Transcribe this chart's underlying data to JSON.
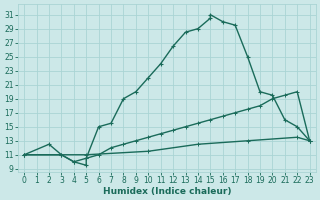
{
  "xlabel": "Humidex (Indice chaleur)",
  "bg_color": "#cce8e8",
  "grid_color": "#aad4d4",
  "line_color": "#1a6b5a",
  "xlim": [
    -0.5,
    23.5
  ],
  "ylim": [
    8.5,
    32.5
  ],
  "xticks": [
    0,
    1,
    2,
    3,
    4,
    5,
    6,
    7,
    8,
    9,
    10,
    11,
    12,
    13,
    14,
    15,
    16,
    17,
    18,
    19,
    20,
    21,
    22,
    23
  ],
  "yticks": [
    9,
    11,
    13,
    15,
    17,
    19,
    21,
    23,
    25,
    27,
    29,
    31
  ],
  "curve1_x": [
    0,
    2,
    3,
    4,
    5,
    5,
    6,
    7,
    8,
    9,
    10,
    11,
    12,
    13,
    14,
    15,
    15,
    16,
    17,
    18,
    19,
    20,
    21,
    22,
    23
  ],
  "curve1_y": [
    11,
    12.5,
    11,
    10,
    9.5,
    10.5,
    15,
    15.5,
    19,
    20,
    22,
    24,
    26.5,
    28.5,
    29,
    30.5,
    31,
    30,
    29.5,
    25,
    20,
    19.5,
    16,
    15,
    13
  ],
  "curve2_x": [
    0,
    3,
    4,
    5,
    6,
    7,
    8,
    9,
    10,
    11,
    12,
    13,
    14,
    15,
    16,
    17,
    18,
    19,
    20,
    21,
    22,
    23
  ],
  "curve2_y": [
    11,
    11,
    10,
    10.5,
    11,
    12,
    12.5,
    13,
    13.5,
    14,
    14.5,
    15,
    15.5,
    16,
    16.5,
    17,
    17.5,
    18,
    19,
    19.5,
    20,
    13
  ],
  "curve3_x": [
    0,
    5,
    10,
    14,
    18,
    22,
    23
  ],
  "curve3_y": [
    11,
    11,
    11.5,
    12.5,
    13,
    13.5,
    13
  ],
  "lw": 1.0,
  "xlabel_fontsize": 6.5,
  "tick_fontsize": 5.5
}
